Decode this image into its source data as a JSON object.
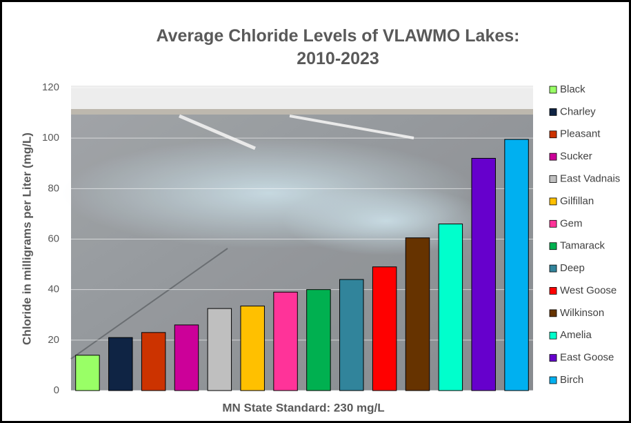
{
  "chart_data": {
    "type": "bar",
    "title": "Average Chloride Levels of VLAWMO Lakes: 2010-2023",
    "y_label": "Chloride in milligrams per Liter (mg/L)",
    "x_label": "MN State Standard: 230 mg/L",
    "categories": [
      "Black",
      "Charley",
      "Pleasant",
      "Sucker",
      "East Vadnais",
      "Gilfillan",
      "Gem",
      "Tamarack",
      "Deep",
      "West Goose",
      "Wilkinson",
      "Amelia",
      "East Goose",
      "Birch"
    ],
    "values": [
      14,
      21,
      23,
      26,
      32.5,
      33.5,
      39,
      40,
      44,
      49,
      60.5,
      66,
      92,
      99.5
    ],
    "colors": [
      "#99ff66",
      "#0f2444",
      "#cc3300",
      "#cc0099",
      "#bfbfbf",
      "#ffc000",
      "#ff3399",
      "#00b050",
      "#31849b",
      "#ff0000",
      "#663300",
      "#00ffcc",
      "#6600cc",
      "#00b0f0"
    ],
    "ylim": [
      0,
      120
    ],
    "yticks": [
      0,
      20,
      40,
      60,
      80,
      100,
      120
    ],
    "grid": true,
    "legend": "right"
  }
}
